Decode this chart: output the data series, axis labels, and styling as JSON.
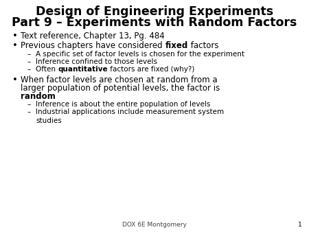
{
  "title_line1": "Design of Engineering Experiments",
  "title_line2": "Part 9 – Experiments with Random Factors",
  "footer": "DOX 6E Montgomery",
  "page_number": "1",
  "background_color": "#ffffff",
  "title_color": "#000000",
  "text_color": "#000000",
  "title_fontsize": 12.5,
  "body_fontsize": 8.5,
  "sub_fontsize": 7.5,
  "footer_fontsize": 6.5
}
